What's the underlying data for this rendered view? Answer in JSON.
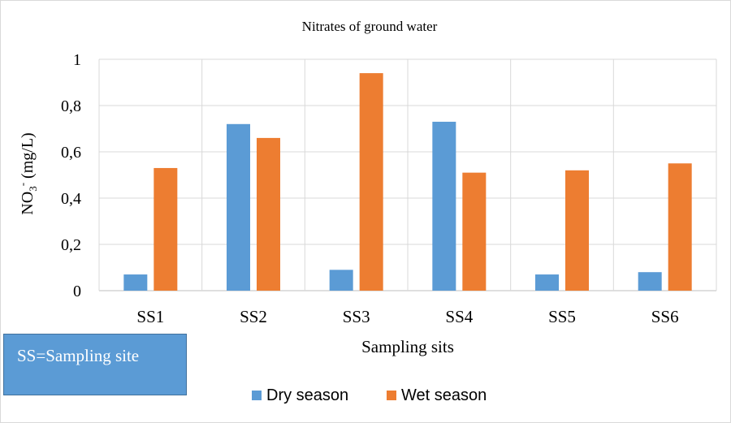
{
  "chart_data": {
    "type": "bar",
    "title": "Nitrates of ground water",
    "xlabel": "Sampling sits",
    "ylabel_main": "NO",
    "ylabel_sub": "3",
    "ylabel_sup": "-",
    "ylabel_unit": " (mg/L)",
    "categories": [
      "SS1",
      "SS2",
      "SS3",
      "SS4",
      "SS5",
      "SS6"
    ],
    "series": [
      {
        "name": "Dry season",
        "color": "#5b9bd5",
        "values": [
          0.07,
          0.72,
          0.09,
          0.73,
          0.07,
          0.08
        ]
      },
      {
        "name": "Wet season",
        "color": "#ed7d31",
        "values": [
          0.53,
          0.66,
          0.94,
          0.51,
          0.52,
          0.55
        ]
      }
    ],
    "ylim": [
      0,
      1
    ],
    "yticks": [
      0,
      0.2,
      0.4,
      0.6,
      0.8,
      1
    ],
    "ytick_labels": [
      "0",
      "0,2",
      "0,4",
      "0,6",
      "0,8",
      "1"
    ],
    "grid": true,
    "legend_position": "bottom"
  },
  "note": {
    "text": "SS=Sampling site"
  }
}
